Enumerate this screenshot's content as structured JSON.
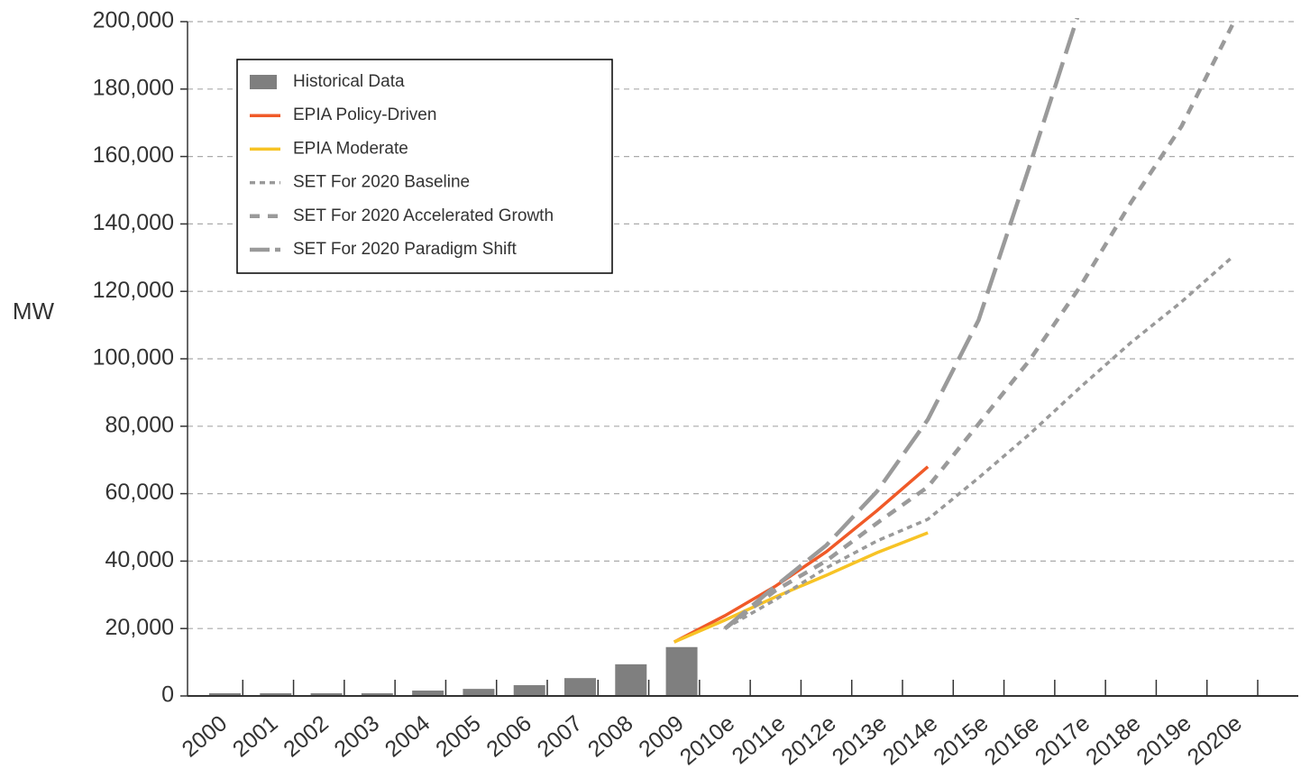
{
  "chart_data": {
    "type": "bar",
    "y_label": "MW",
    "categories": [
      "2000",
      "2001",
      "2002",
      "2003",
      "2004",
      "2005",
      "2006",
      "2007",
      "2008",
      "2009",
      "2010e",
      "2011e",
      "2012e",
      "2013e",
      "2014e",
      "2015e",
      "2016e",
      "2017e",
      "2018e",
      "2019e",
      "2020e"
    ],
    "ylim": [
      0,
      200000
    ],
    "yticks": [
      0,
      {
        "value": 20000,
        "label": "20,000"
      },
      {
        "value": 40000,
        "label": "40,000"
      },
      {
        "value": 60000,
        "label": "60,000"
      },
      {
        "value": 80000,
        "label": "80,000"
      },
      {
        "value": 100000,
        "label": "100,000"
      },
      {
        "value": 120000,
        "label": "120,000"
      },
      {
        "value": 140000,
        "label": "140,000"
      },
      {
        "value": 160000,
        "label": "160,000"
      },
      {
        "value": 180000,
        "label": "180,000"
      },
      {
        "value": 200000,
        "label": "200,000"
      }
    ],
    "grid": true,
    "legend": "upper left",
    "series": [
      {
        "name": "Historical Data",
        "type": "bar",
        "color": "#7f7f7f",
        "values": [
          800,
          800,
          800,
          800,
          1600,
          2100,
          3200,
          5300,
          9400,
          14500,
          null,
          null,
          null,
          null,
          null,
          null,
          null,
          null,
          null,
          null,
          null
        ]
      },
      {
        "name": "EPIA Policy-Driven",
        "type": "line",
        "dash": "solid",
        "color": "#f05a28",
        "values": [
          null,
          null,
          null,
          null,
          null,
          null,
          null,
          null,
          null,
          16000,
          23800,
          32600,
          42800,
          55000,
          68000,
          null,
          null,
          null,
          null,
          null,
          null
        ]
      },
      {
        "name": "EPIA Moderate",
        "type": "line",
        "dash": "solid",
        "color": "#f7c325",
        "values": [
          null,
          null,
          null,
          null,
          null,
          null,
          null,
          null,
          null,
          16000,
          22500,
          29400,
          35800,
          42500,
          48400,
          null,
          null,
          null,
          null,
          null,
          null
        ]
      },
      {
        "name": "SET For 2020 Baseline",
        "type": "line",
        "dash": "dotted",
        "color": "#9a9a9a",
        "values": [
          null,
          null,
          null,
          null,
          null,
          null,
          null,
          null,
          null,
          null,
          20000,
          28600,
          38000,
          46000,
          52400,
          64700,
          77600,
          91500,
          104800,
          116900,
          130200
        ]
      },
      {
        "name": "SET For 2020 Accelerated Growth",
        "type": "line",
        "dash": "dashed",
        "color": "#9a9a9a",
        "values": [
          null,
          null,
          null,
          null,
          null,
          null,
          null,
          null,
          null,
          null,
          20000,
          31300,
          40100,
          51300,
          62000,
          80700,
          99500,
          121400,
          146300,
          169000,
          199000
        ]
      },
      {
        "name": "SET For 2020 Paradigm Shift",
        "type": "line",
        "dash": "long-dashed",
        "color": "#9a9a9a",
        "values": [
          null,
          null,
          null,
          null,
          null,
          null,
          null,
          null,
          null,
          null,
          20000,
          32600,
          44700,
          60700,
          82000,
          111500,
          157000,
          203800,
          null,
          null,
          null
        ]
      }
    ]
  }
}
